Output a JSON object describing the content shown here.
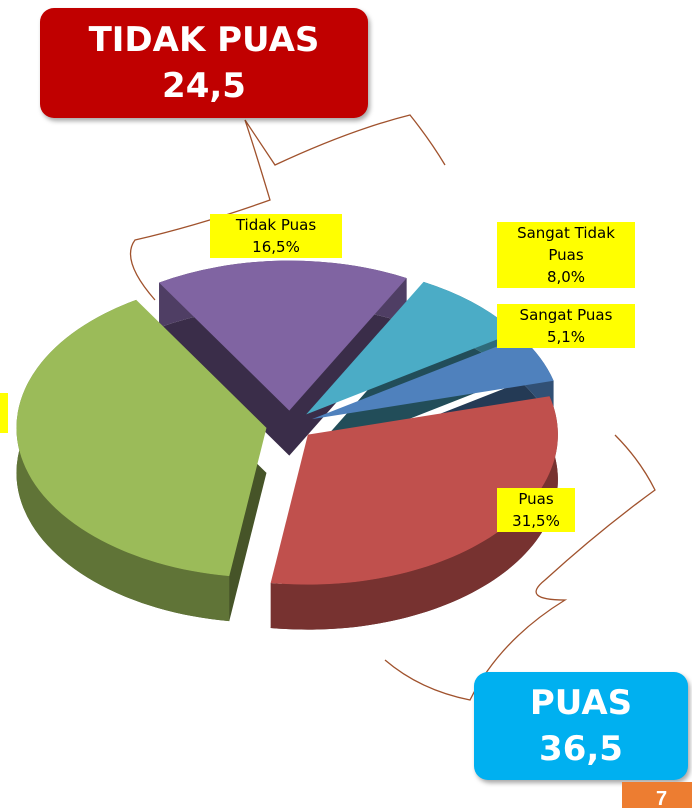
{
  "chart_data": {
    "type": "pie",
    "categories": [
      "Sangat Tidak Puas",
      "Sangat Puas",
      "Puas",
      null,
      "Tidak Puas"
    ],
    "values": [
      8.0,
      5.1,
      31.5,
      38.9,
      16.5
    ],
    "value_labels": [
      "8,0%",
      "5,1%",
      "31,5%",
      null,
      "16,5%"
    ],
    "colors": [
      "#4bacc6",
      "#4f81bd",
      "#c0504d",
      "#9bbb59",
      "#8064a2"
    ],
    "annotations": [
      {
        "title": "TIDAK PUAS",
        "value": "24,5",
        "color": "#c00000"
      },
      {
        "title": "PUAS",
        "value": "36,5",
        "color": "#00b0f0"
      }
    ],
    "page_number": "7"
  }
}
